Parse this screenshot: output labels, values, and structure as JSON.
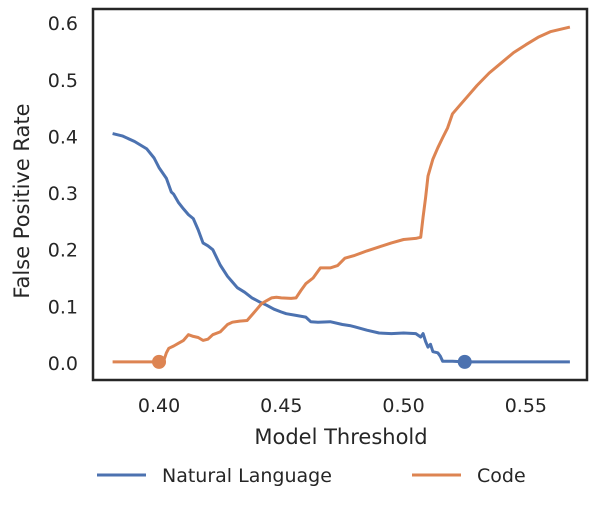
{
  "chart_data": {
    "type": "line",
    "title": "",
    "xlabel": "Model Threshold",
    "ylabel": "False Positive Rate",
    "xlim": [
      0.373,
      0.575
    ],
    "ylim": [
      -0.03,
      0.625
    ],
    "x_ticks": [
      0.4,
      0.45,
      0.5,
      0.55
    ],
    "x_tick_labels": [
      "0.40",
      "0.45",
      "0.50",
      "0.55"
    ],
    "y_ticks": [
      0.0,
      0.1,
      0.2,
      0.3,
      0.4,
      0.5,
      0.6
    ],
    "y_tick_labels": [
      "0.0",
      "0.1",
      "0.2",
      "0.3",
      "0.4",
      "0.5",
      "0.6"
    ],
    "grid": false,
    "legend_position": "bottom-center",
    "series": [
      {
        "name": "Natural Language",
        "color": "#4c72b0",
        "x": [
          0.381,
          0.385,
          0.39,
          0.395,
          0.398,
          0.4,
          0.403,
          0.405,
          0.406,
          0.408,
          0.41,
          0.412,
          0.414,
          0.416,
          0.418,
          0.42,
          0.422,
          0.425,
          0.428,
          0.43,
          0.432,
          0.435,
          0.438,
          0.441,
          0.444,
          0.447,
          0.45,
          0.452,
          0.456,
          0.46,
          0.462,
          0.465,
          0.47,
          0.475,
          0.478,
          0.48,
          0.485,
          0.49,
          0.495,
          0.5,
          0.505,
          0.507,
          0.508,
          0.509,
          0.51,
          0.511,
          0.512,
          0.514,
          0.515,
          0.516,
          0.52,
          0.525,
          0.53,
          0.54,
          0.55,
          0.56,
          0.568
        ],
        "y": [
          0.405,
          0.401,
          0.391,
          0.378,
          0.362,
          0.345,
          0.326,
          0.302,
          0.298,
          0.283,
          0.272,
          0.262,
          0.255,
          0.235,
          0.212,
          0.207,
          0.2,
          0.173,
          0.153,
          0.143,
          0.133,
          0.125,
          0.115,
          0.108,
          0.102,
          0.095,
          0.09,
          0.087,
          0.084,
          0.081,
          0.073,
          0.072,
          0.073,
          0.068,
          0.066,
          0.064,
          0.058,
          0.053,
          0.052,
          0.053,
          0.052,
          0.046,
          0.052,
          0.038,
          0.028,
          0.033,
          0.02,
          0.018,
          0.012,
          0.003,
          0.003,
          0.002,
          0.002,
          0.002,
          0.002,
          0.002,
          0.002
        ],
        "marker_point": [
          0.525,
          0.002
        ]
      },
      {
        "name": "Code",
        "color": "#dd8452",
        "x": [
          0.381,
          0.39,
          0.398,
          0.4,
          0.402,
          0.403,
          0.404,
          0.406,
          0.408,
          0.41,
          0.412,
          0.414,
          0.416,
          0.418,
          0.42,
          0.422,
          0.425,
          0.428,
          0.43,
          0.433,
          0.436,
          0.438,
          0.44,
          0.442,
          0.444,
          0.446,
          0.448,
          0.45,
          0.454,
          0.456,
          0.458,
          0.46,
          0.463,
          0.466,
          0.47,
          0.473,
          0.476,
          0.48,
          0.485,
          0.49,
          0.495,
          0.5,
          0.505,
          0.506,
          0.507,
          0.508,
          0.509,
          0.51,
          0.512,
          0.514,
          0.516,
          0.518,
          0.52,
          0.523,
          0.526,
          0.53,
          0.535,
          0.54,
          0.545,
          0.55,
          0.555,
          0.56,
          0.565,
          0.568
        ],
        "y": [
          0.002,
          0.002,
          0.002,
          0.002,
          0.005,
          0.018,
          0.026,
          0.03,
          0.035,
          0.04,
          0.05,
          0.047,
          0.045,
          0.04,
          0.042,
          0.05,
          0.055,
          0.068,
          0.072,
          0.074,
          0.075,
          0.085,
          0.095,
          0.105,
          0.11,
          0.115,
          0.116,
          0.115,
          0.114,
          0.115,
          0.128,
          0.14,
          0.15,
          0.168,
          0.168,
          0.172,
          0.185,
          0.19,
          0.198,
          0.205,
          0.212,
          0.218,
          0.22,
          0.221,
          0.222,
          0.258,
          0.292,
          0.33,
          0.36,
          0.38,
          0.398,
          0.415,
          0.44,
          0.455,
          0.47,
          0.49,
          0.512,
          0.53,
          0.548,
          0.562,
          0.575,
          0.585,
          0.59,
          0.593
        ],
        "marker_point": [
          0.4,
          0.002
        ]
      }
    ]
  }
}
